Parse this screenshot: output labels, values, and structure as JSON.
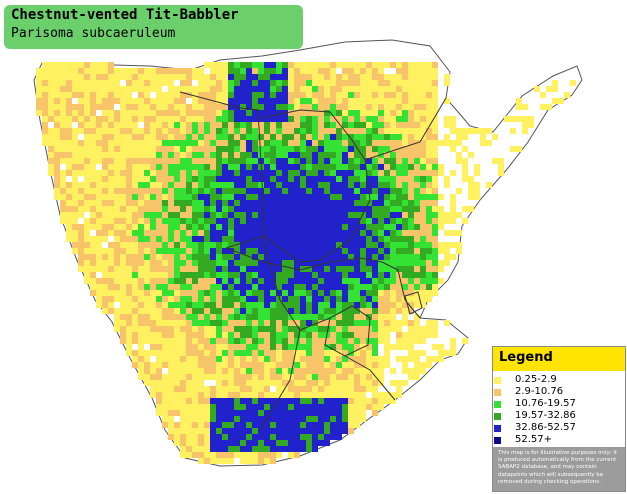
{
  "title": "Chestnut-vented Tit-Babbler",
  "subtitle": "Parisoma subcaeruleum",
  "legend": {
    "title": "Legend",
    "classes": [
      {
        "label": "0.25-2.9",
        "color": "#fff15f"
      },
      {
        "label": "2.9-10.76",
        "color": "#f8c46a"
      },
      {
        "label": "10.76-19.57",
        "color": "#34e234"
      },
      {
        "label": "19.57-32.86",
        "color": "#33aa22"
      },
      {
        "label": "32.86-52.57",
        "color": "#2222cc"
      },
      {
        "label": "52.57+",
        "color": "#0b0b8a"
      }
    ],
    "disclaimer": "This map is for illustrative purposes only; it is produced automatically from the current SABAP2 database, and may contain datapoints which will subsequently be removed during checking operations."
  },
  "colors": {
    "land": "#ffffff",
    "border": "#333333",
    "title_box": "#6bcf6b",
    "legend_header": "#ffe400"
  }
}
